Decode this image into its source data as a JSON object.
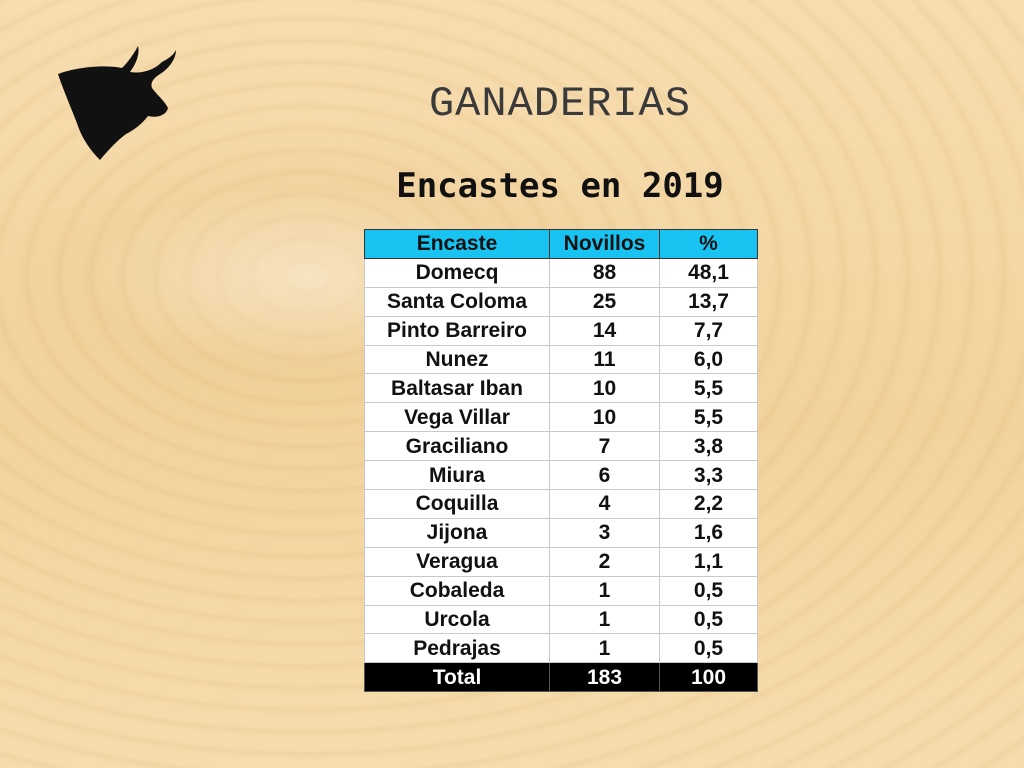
{
  "title": "GANADERIAS",
  "subtitle": "Encastes en 2019",
  "icons": {
    "logo": "bull-head-silhouette-icon"
  },
  "colors": {
    "header_bg": "#18c3f2",
    "total_bg": "#000000",
    "title": "#3a3a3a"
  },
  "table": {
    "headers": [
      "Encaste",
      "Novillos",
      "%"
    ],
    "rows": [
      [
        "Domecq",
        "88",
        "48,1"
      ],
      [
        "Santa Coloma",
        "25",
        "13,7"
      ],
      [
        "Pinto Barreiro",
        "14",
        "7,7"
      ],
      [
        "Nunez",
        "11",
        "6,0"
      ],
      [
        "Baltasar Iban",
        "10",
        "5,5"
      ],
      [
        "Vega Villar",
        "10",
        "5,5"
      ],
      [
        "Graciliano",
        "7",
        "3,8"
      ],
      [
        "Miura",
        "6",
        "3,3"
      ],
      [
        "Coquilla",
        "4",
        "2,2"
      ],
      [
        "Jijona",
        "3",
        "1,6"
      ],
      [
        "Veragua",
        "2",
        "1,1"
      ],
      [
        "Cobaleda",
        "1",
        "0,5"
      ],
      [
        "Urcola",
        "1",
        "0,5"
      ],
      [
        "Pedrajas",
        "1",
        "0,5"
      ]
    ],
    "total": [
      "Total",
      "183",
      "100"
    ]
  }
}
